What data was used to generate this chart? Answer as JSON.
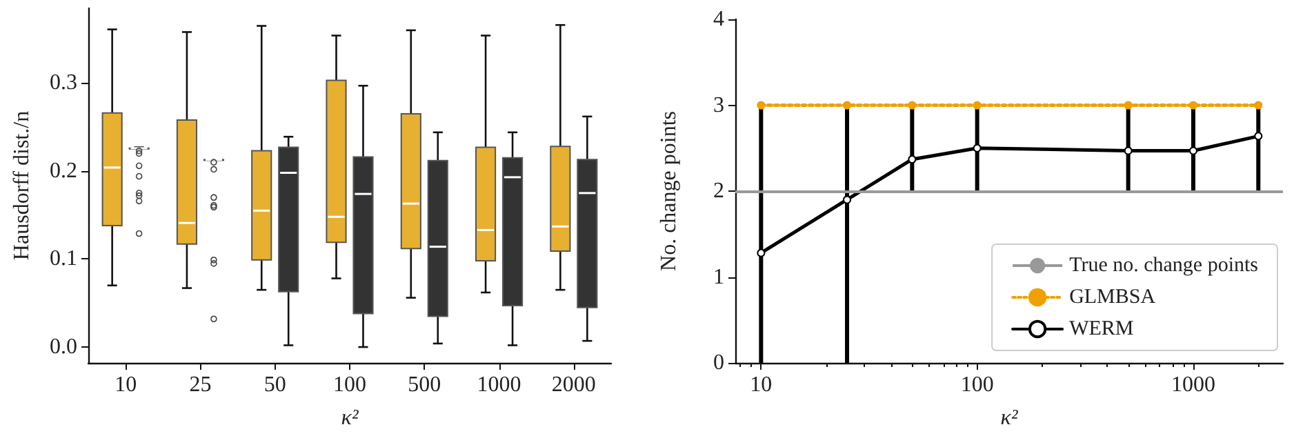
{
  "chart_data": [
    {
      "type": "box",
      "categories": [
        "10",
        "25",
        "50",
        "100",
        "500",
        "1000",
        "2000"
      ],
      "xlabel": "κ²",
      "ylabel": "Hausdorff dist./n",
      "ylim": [
        -0.018,
        0.385
      ],
      "yticks": [
        {
          "value": 0,
          "label": "0.0"
        },
        {
          "value": 0.1,
          "label": "0.1"
        },
        {
          "value": 0.2,
          "label": "0.2"
        },
        {
          "value": 0.3,
          "label": "0.3"
        }
      ],
      "grid": false,
      "legend": false,
      "series": [
        {
          "color": "#e8b030",
          "boxes": [
            {
              "low": 0.07,
              "q1": 0.138,
              "median": 0.204,
              "q3": 0.266,
              "high": 0.361
            },
            {
              "low": 0.067,
              "q1": 0.117,
              "median": 0.141,
              "q3": 0.258,
              "high": 0.358
            },
            {
              "low": 0.065,
              "q1": 0.099,
              "median": 0.155,
              "q3": 0.223,
              "high": 0.365
            },
            {
              "low": 0.078,
              "q1": 0.119,
              "median": 0.148,
              "q3": 0.303,
              "high": 0.354
            },
            {
              "low": 0.056,
              "q1": 0.112,
              "median": 0.163,
              "q3": 0.265,
              "high": 0.36
            },
            {
              "low": 0.062,
              "q1": 0.098,
              "median": 0.133,
              "q3": 0.227,
              "high": 0.354
            },
            {
              "low": 0.065,
              "q1": 0.109,
              "median": 0.137,
              "q3": 0.228,
              "high": 0.366
            }
          ]
        },
        {
          "color": "#333333",
          "boxes": [
            {
              "low": 0.226,
              "q1": 0.226,
              "median": 0.226,
              "q3": 0.226,
              "high": 0.227,
              "outliers": [
                0.223,
                0.22,
                0.206,
                0.194,
                0.175,
                0.172,
                0.166,
                0.129
              ]
            },
            {
              "low": 0.213,
              "q1": 0.213,
              "median": 0.213,
              "q3": 0.213,
              "high": 0.213,
              "outliers": [
                0.21,
                0.202,
                0.17,
                0.161,
                0.159,
                0.099,
                0.095,
                0.032
              ]
            },
            {
              "low": 0.002,
              "q1": 0.063,
              "median": 0.198,
              "q3": 0.227,
              "high": 0.239
            },
            {
              "low": 0.0,
              "q1": 0.038,
              "median": 0.174,
              "q3": 0.216,
              "high": 0.297
            },
            {
              "low": 0.004,
              "q1": 0.035,
              "median": 0.114,
              "q3": 0.212,
              "high": 0.244
            },
            {
              "low": 0.002,
              "q1": 0.047,
              "median": 0.193,
              "q3": 0.215,
              "high": 0.244
            },
            {
              "low": 0.007,
              "q1": 0.045,
              "median": 0.175,
              "q3": 0.213,
              "high": 0.262
            }
          ]
        }
      ]
    },
    {
      "type": "line",
      "x": [
        10,
        25,
        50,
        100,
        500,
        1000,
        2000
      ],
      "xlabel": "κ²",
      "ylabel": "No. change points",
      "log": "x",
      "xlim": [
        7.6,
        2600
      ],
      "xticks": [
        10,
        100,
        1000
      ],
      "ylim": [
        0,
        4
      ],
      "yticks": [
        0,
        1,
        2,
        3,
        4
      ],
      "grid": false,
      "legend": "bottom right",
      "marker": "circle",
      "ref_lines": [
        {
          "axis": "y",
          "value": 2,
          "label": "True no. change points",
          "color": "#999999"
        }
      ],
      "series": [
        {
          "name": "GLMBSA",
          "color": "#f0a000",
          "line_style": "dotted",
          "values": [
            3,
            3,
            3,
            3,
            3,
            3,
            3
          ]
        },
        {
          "name": "WERM",
          "color": "#000000",
          "line_style": "solid",
          "values": [
            1.28,
            1.9,
            2.37,
            2.5,
            2.47,
            2.47,
            2.64
          ],
          "errors": [
            [
              0,
              3
            ],
            [
              0,
              3
            ],
            [
              2,
              3
            ],
            [
              2,
              3
            ],
            [
              2,
              3
            ],
            [
              2,
              3
            ],
            [
              2,
              3
            ]
          ]
        }
      ]
    }
  ]
}
